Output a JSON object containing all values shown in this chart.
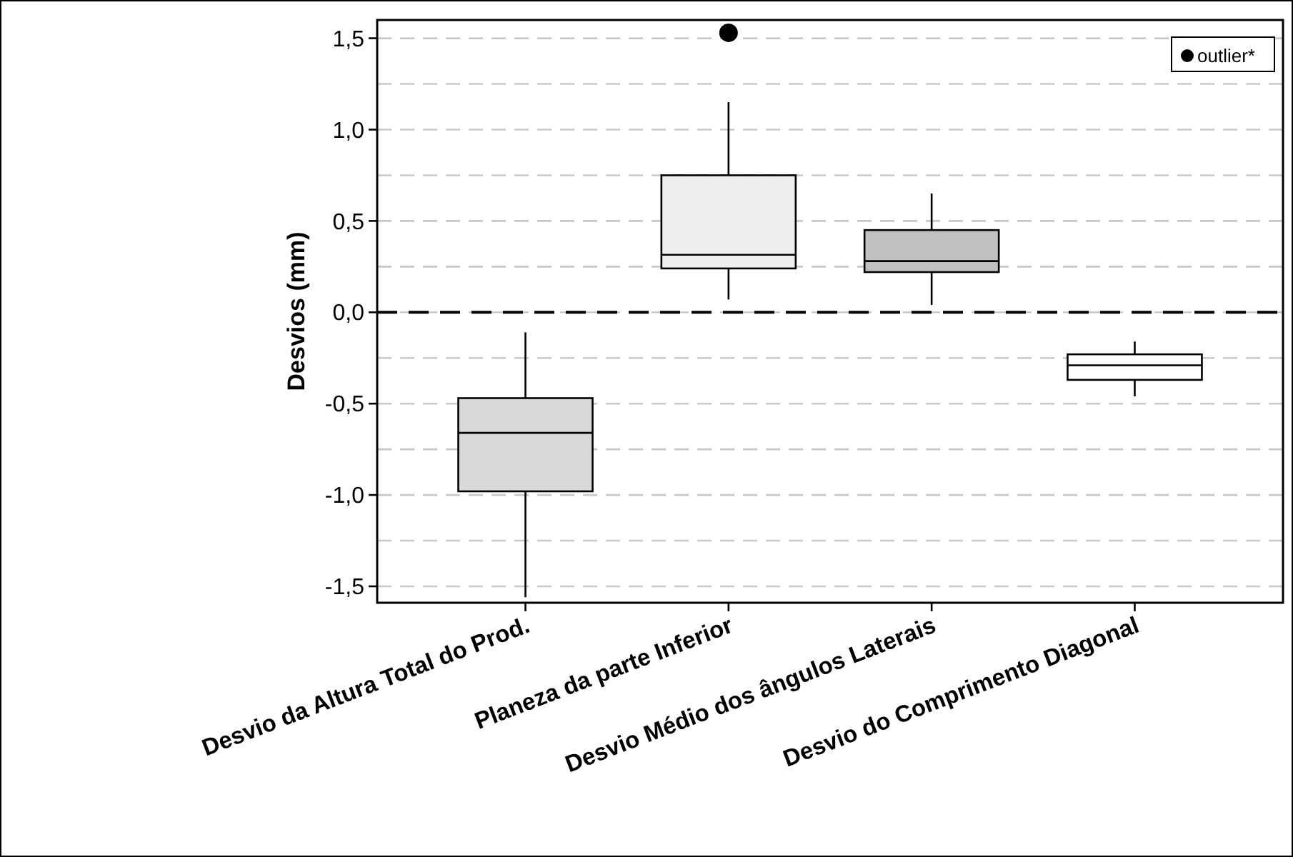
{
  "chart_data": {
    "type": "box",
    "ylabel": "Desvios (mm)",
    "categories": [
      "Desvio da Altura Total do Prod.",
      "Planeza da parte Inferior",
      "Desvio Médio dos ângulos Laterais",
      "Desvio do Comprimento Diagonal"
    ],
    "colors": [
      "#d9d9d9",
      "#eeeeee",
      "#c0c0c0",
      "#ffffff"
    ],
    "boxes": [
      {
        "low": -1.56,
        "q1": -0.98,
        "median": -0.66,
        "q3": -0.47,
        "high": -0.11
      },
      {
        "low": 0.07,
        "q1": 0.24,
        "median": 0.315,
        "q3": 0.75,
        "high": 1.15
      },
      {
        "low": 0.04,
        "q1": 0.22,
        "median": 0.28,
        "q3": 0.45,
        "high": 0.65
      },
      {
        "low": -0.46,
        "q1": -0.37,
        "median": -0.29,
        "q3": -0.23,
        "high": -0.16
      }
    ],
    "series": [
      {
        "type": "scatter",
        "name": "outlier*",
        "color": "#000000",
        "marker": "circle",
        "x": [
          "Planeza da parte Inferior"
        ],
        "values": [
          1.53
        ]
      }
    ],
    "ylim": [
      -1.59,
      1.6
    ],
    "yticks": [
      {
        "value": -1.5,
        "label": "-1,5"
      },
      {
        "value": -1.25,
        "label": null
      },
      {
        "value": -1,
        "label": "-1,0"
      },
      {
        "value": -0.75,
        "label": null
      },
      {
        "value": -0.5,
        "label": "-0,5"
      },
      {
        "value": -0.25,
        "label": null
      },
      {
        "value": 0,
        "label": "0,0"
      },
      {
        "value": 0.25,
        "label": null
      },
      {
        "value": 0.5,
        "label": "0,5"
      },
      {
        "value": 0.75,
        "label": null
      },
      {
        "value": 1,
        "label": "1,0"
      },
      {
        "value": 1.25,
        "label": null
      },
      {
        "value": 1.5,
        "label": "1,5"
      }
    ],
    "grid": "y",
    "legend": "top right",
    "ref_lines": [
      {
        "axis": "y",
        "value": 0,
        "color": "#000000",
        "line_style": "dashed"
      }
    ]
  }
}
